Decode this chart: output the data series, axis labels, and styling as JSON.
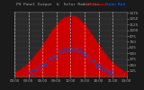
{
  "title": "  PV Panel Output  &  Solar Radiation",
  "bg_color": "#1a1a1a",
  "plot_bg": "#2a2a2a",
  "red_color": "#cc0000",
  "blue_color": "#0055cc",
  "grid_color": "#666666",
  "text_color": "#aaaaaa",
  "y_max": 1400,
  "y_ticks": [
    125,
    250,
    375,
    500,
    625,
    750,
    875,
    1000,
    1125,
    1250,
    1375
  ],
  "n_points": 288,
  "sigma": 0.22,
  "pv_peak": 1330,
  "solar_peak": 600,
  "n_xticks": 9,
  "xtick_labels": [
    "00:00",
    "03:00",
    "06:00",
    "09:00",
    "12:00",
    "15:00",
    "18:00",
    "21:00",
    "24:00"
  ]
}
